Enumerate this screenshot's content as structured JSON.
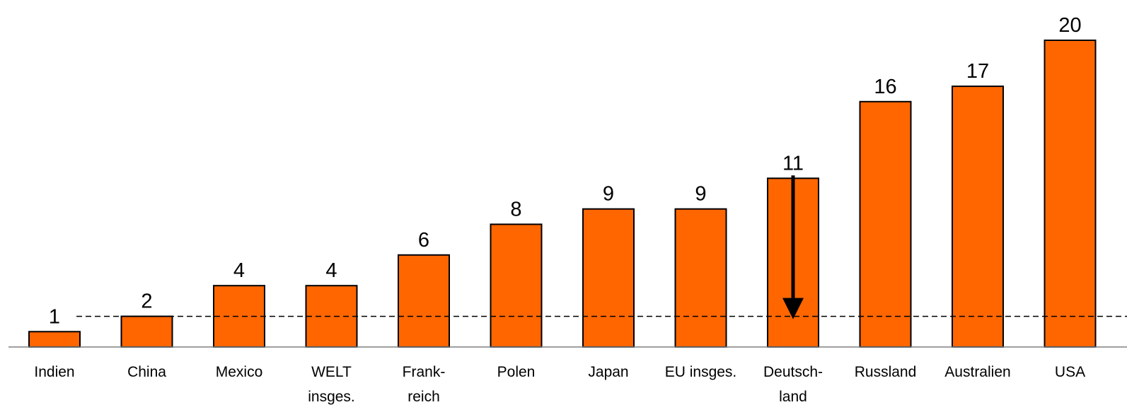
{
  "colors": {
    "bar_fill": "#FF6600",
    "bar_stroke": "#000000",
    "axis": "#808080",
    "reference_line": "#000000",
    "arrow": "#000000",
    "text": "#000000"
  },
  "chart_data": {
    "type": "bar",
    "title": "",
    "xlabel": "",
    "ylabel": "",
    "categories": [
      [
        "Indien"
      ],
      [
        "China"
      ],
      [
        "Mexico"
      ],
      [
        "WELT",
        "insges."
      ],
      [
        "Frank-",
        "reich"
      ],
      [
        "Polen"
      ],
      [
        "Japan"
      ],
      [
        "EU insges."
      ],
      [
        "Deutsch-",
        "land"
      ],
      [
        "Russland"
      ],
      [
        "Australien"
      ],
      [
        "USA"
      ]
    ],
    "values": [
      1,
      2,
      4,
      4,
      6,
      8,
      9,
      9,
      11,
      16,
      17,
      20
    ],
    "ylim": [
      0,
      20
    ],
    "grid": false,
    "reference_line": {
      "value": 2,
      "style": "dashed"
    },
    "arrow": {
      "category_index": 8,
      "from_value": 11,
      "to_value": 2,
      "direction": "down"
    }
  }
}
